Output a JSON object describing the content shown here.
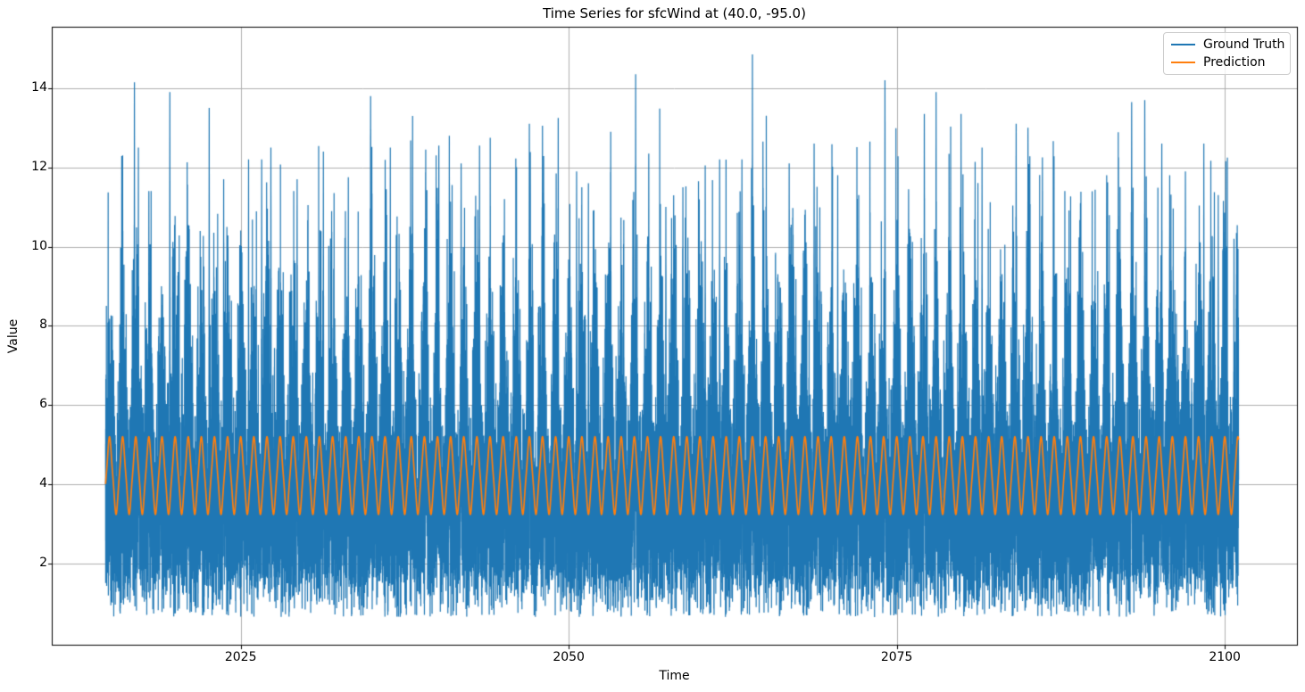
{
  "chart_data": {
    "type": "line",
    "title": "Time Series for sfcWind at (40.0, -95.0)",
    "xlabel": "Time",
    "ylabel": "Value",
    "xlim": [
      2010.6,
      2105.5
    ],
    "ylim": [
      -0.05,
      15.55
    ],
    "xticks": [
      2025,
      2050,
      2075,
      2100
    ],
    "yticks": [
      2,
      4,
      6,
      8,
      10,
      12,
      14
    ],
    "grid": true,
    "grid_color": "#b0b0b0",
    "spine_color": "#000000",
    "legend_position": "upper right",
    "data_x_start": 2014.7,
    "data_x_end": 2101.05,
    "series": [
      {
        "name": "Ground Truth",
        "color": "#1f77b4",
        "style": "noisy-daily",
        "sampling_per_year": 365,
        "observed_min": 0.65,
        "observed_max": 14.85,
        "seasonal_mean": {
          "base": 3.45,
          "annual_amplitude": 0.75,
          "peak_phase": "year-start"
        },
        "noise_sd": {
          "base": 1.2,
          "annual_amplitude": 0.45
        },
        "upside_skew": 1.8,
        "downside_factor": 0.92,
        "soft_cap": 12.2,
        "notable_peaks": [
          [
            2016.0,
            12.3
          ],
          [
            2016.9,
            14.15
          ],
          [
            2017.2,
            12.5
          ],
          [
            2018.0,
            11.4
          ],
          [
            2019.6,
            13.9
          ],
          [
            2021.0,
            10.2
          ],
          [
            2022.6,
            13.5
          ],
          [
            2023.7,
            11.7
          ],
          [
            2025.6,
            12.2
          ],
          [
            2026.6,
            12.2
          ],
          [
            2027.3,
            12.5
          ],
          [
            2029.3,
            11.7
          ],
          [
            2031.3,
            12.4
          ],
          [
            2033.2,
            11.75
          ],
          [
            2034.9,
            13.8
          ],
          [
            2036.4,
            12.5
          ],
          [
            2038.1,
            13.3
          ],
          [
            2039.1,
            12.45
          ],
          [
            2040.1,
            12.55
          ],
          [
            2040.9,
            12.8
          ],
          [
            2041.8,
            12.1
          ],
          [
            2043.2,
            12.55
          ],
          [
            2045.1,
            11.2
          ],
          [
            2047.0,
            13.1
          ],
          [
            2048.0,
            13.05
          ],
          [
            2049.2,
            13.25
          ],
          [
            2050.6,
            11.9
          ],
          [
            2051.5,
            11.6
          ],
          [
            2053.2,
            12.9
          ],
          [
            2055.1,
            14.35
          ],
          [
            2056.1,
            12.35
          ],
          [
            2057.4,
            11.0
          ],
          [
            2058.7,
            11.5
          ],
          [
            2060.4,
            12.05
          ],
          [
            2061.5,
            12.2
          ],
          [
            2063.2,
            12.2
          ],
          [
            2064.0,
            14.85
          ],
          [
            2064.8,
            12.65
          ],
          [
            2066.8,
            12.1
          ],
          [
            2068.7,
            12.6
          ],
          [
            2070.5,
            11.8
          ],
          [
            2072.1,
            11.3
          ],
          [
            2074.1,
            14.2
          ],
          [
            2075.9,
            11.45
          ],
          [
            2077.1,
            13.35
          ],
          [
            2078.0,
            13.9
          ],
          [
            2079.9,
            13.35
          ],
          [
            2081.5,
            12.5
          ],
          [
            2084.1,
            13.1
          ],
          [
            2085.0,
            13.0
          ],
          [
            2086.1,
            12.25
          ],
          [
            2089.0,
            11.1
          ],
          [
            2091.0,
            11.8
          ],
          [
            2091.9,
            12.25
          ],
          [
            2092.9,
            13.65
          ],
          [
            2093.9,
            13.7
          ],
          [
            2095.2,
            12.6
          ],
          [
            2095.8,
            11.8
          ],
          [
            2097.0,
            11.9
          ],
          [
            2098.4,
            12.6
          ],
          [
            2099.5,
            11.3
          ],
          [
            2100.7,
            10.2
          ]
        ]
      },
      {
        "name": "Prediction",
        "color": "#ff7f0e",
        "style": "seasonal-cycle",
        "period_years": 1,
        "mean": 4.22,
        "annual_amplitude": 0.9,
        "third_harmonic_amplitude": 0.08,
        "cycle_max": 5.15,
        "cycle_min": 3.3,
        "peak_phase": "year-start"
      }
    ]
  }
}
